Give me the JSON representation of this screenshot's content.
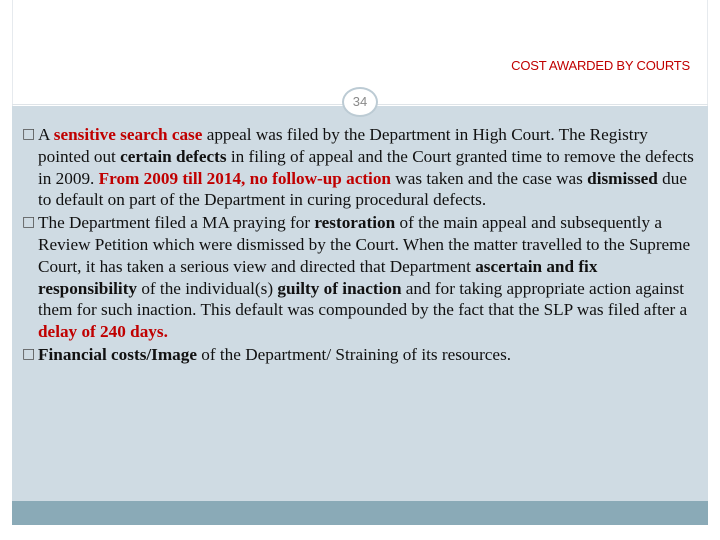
{
  "header": {
    "title": "COST AWARDED BY COURTS"
  },
  "slide": {
    "number": "34"
  },
  "bullet_marker": "□",
  "bullets": [
    {
      "parts": [
        {
          "text": "A ",
          "style": "normal"
        },
        {
          "text": "sensitive search case",
          "style": "red"
        },
        {
          "text": "  appeal was filed by the Department in High Court. The Registry pointed out ",
          "style": "normal"
        },
        {
          "text": "certain defects",
          "style": "bold"
        },
        {
          "text": " in filing of appeal and the Court granted time to remove the defects in 2009. ",
          "style": "normal"
        },
        {
          "text": "From 2009 till 2014, no follow-up action",
          "style": "red"
        },
        {
          "text": " was taken and the case was ",
          "style": "normal"
        },
        {
          "text": "dismissed",
          "style": "bold"
        },
        {
          "text": " due to default on part of the Department in curing  procedural defects.",
          "style": "normal"
        }
      ]
    },
    {
      "parts": [
        {
          "text": "The Department filed a MA praying for ",
          "style": "normal"
        },
        {
          "text": "restoration",
          "style": "bold"
        },
        {
          "text": " of the main appeal and subsequently a Review Petition which were dismissed by the Court. When the matter travelled to the Supreme Court, it has taken a serious view and directed that Department ",
          "style": "normal"
        },
        {
          "text": "ascertain and fix responsibility",
          "style": "bold"
        },
        {
          "text": " of the individual(s) ",
          "style": "normal"
        },
        {
          "text": "guilty of inaction",
          "style": "bold"
        },
        {
          "text": " and for taking appropriate action against them for such inaction. This default was compounded by the fact that the SLP was filed after a ",
          "style": "normal"
        },
        {
          "text": "delay of 240 days.",
          "style": "red"
        }
      ]
    },
    {
      "parts": [
        {
          "text": "Financial costs/Image",
          "style": "bold"
        },
        {
          "text": " of the Department/ Straining of its resources.",
          "style": "normal"
        }
      ]
    }
  ]
}
